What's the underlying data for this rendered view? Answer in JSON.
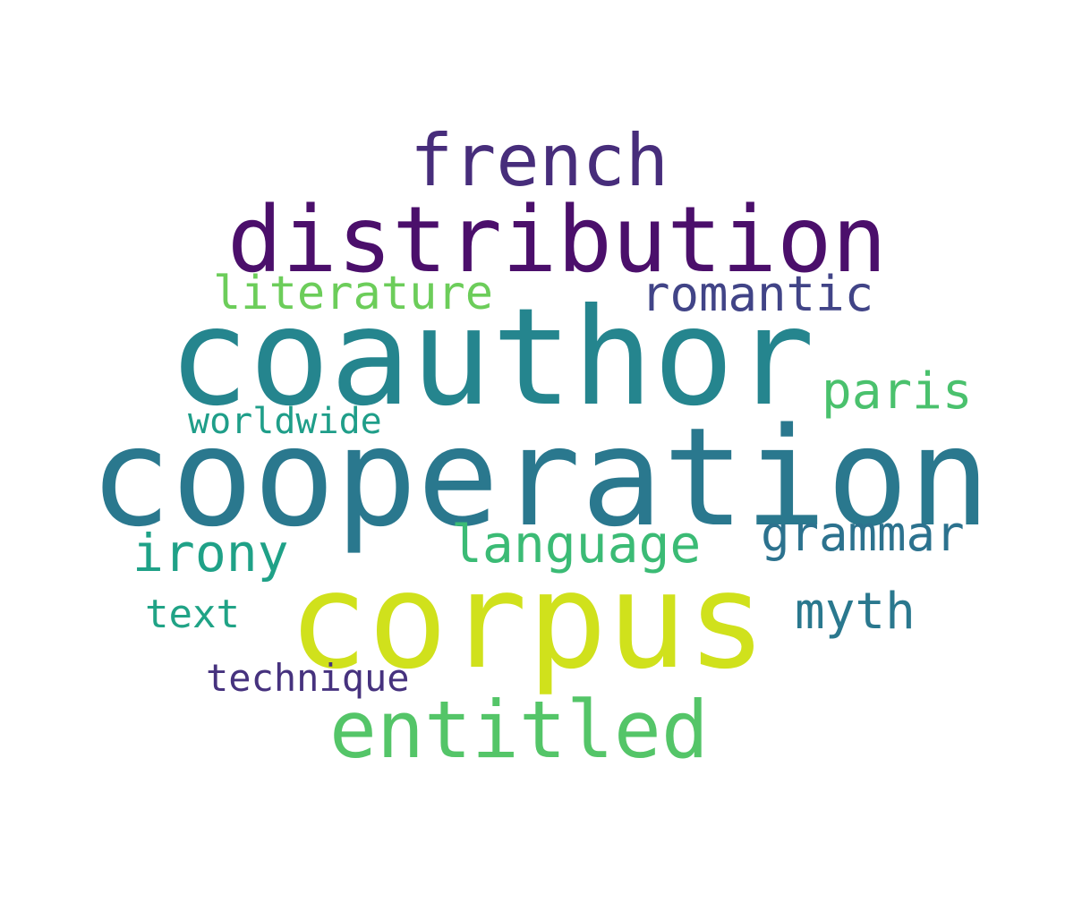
{
  "words": [
    {
      "id": "french",
      "text": "french",
      "color": "#472d7b"
    },
    {
      "id": "distribution",
      "text": "distribution",
      "color": "#4b0f6b"
    },
    {
      "id": "literature",
      "text": "literature",
      "color": "#6ccd5a"
    },
    {
      "id": "romantic",
      "text": "romantic",
      "color": "#414487"
    },
    {
      "id": "coauthor",
      "text": "coauthor",
      "color": "#25858e"
    },
    {
      "id": "paris",
      "text": "paris",
      "color": "#4ac16d"
    },
    {
      "id": "worldwide",
      "text": "worldwide",
      "color": "#1f9e89"
    },
    {
      "id": "cooperation",
      "text": "cooperation",
      "color": "#2a788e"
    },
    {
      "id": "grammar",
      "text": "grammar",
      "color": "#2c728e"
    },
    {
      "id": "irony",
      "text": "irony",
      "color": "#1fa187"
    },
    {
      "id": "language",
      "text": "language",
      "color": "#3bbb75"
    },
    {
      "id": "corpus",
      "text": "corpus",
      "color": "#d0e11c"
    },
    {
      "id": "text",
      "text": "text",
      "color": "#20a386"
    },
    {
      "id": "myth",
      "text": "myth",
      "color": "#2a788e"
    },
    {
      "id": "technique",
      "text": "technique",
      "color": "#46327e"
    },
    {
      "id": "entitled",
      "text": "entitled",
      "color": "#54c568"
    }
  ]
}
